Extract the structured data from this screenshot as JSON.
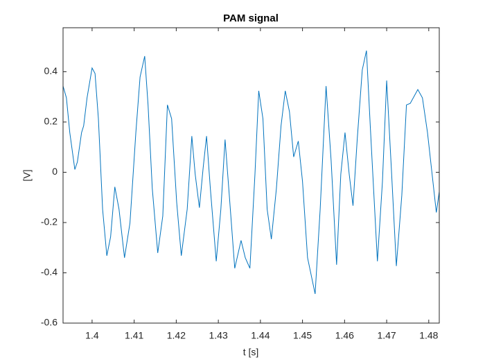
{
  "chart_data": {
    "type": "line",
    "title": "PAM signal",
    "x_label": "t [s]",
    "y_label": "[V]",
    "xlim": [
      1.3931,
      1.4825
    ],
    "ylim": [
      -0.6,
      0.575
    ],
    "xticks": [
      1.4,
      1.41,
      1.42,
      1.43,
      1.44,
      1.45,
      1.46,
      1.47,
      1.48
    ],
    "yticks": [
      -0.6,
      -0.4,
      -0.2,
      0,
      0.2,
      0.4
    ],
    "grid": false,
    "x": [
      1.3931,
      1.3939,
      1.3947,
      1.3959,
      1.3965,
      1.3975,
      1.398,
      1.3988,
      1.4,
      1.4007,
      1.4015,
      1.4025,
      1.4035,
      1.4044,
      1.4054,
      1.4064,
      1.4077,
      1.409,
      1.4104,
      1.4114,
      1.4125,
      1.4133,
      1.4143,
      1.4156,
      1.4168,
      1.4179,
      1.4189,
      1.4201,
      1.4212,
      1.4226,
      1.4237,
      1.4245,
      1.4255,
      1.4264,
      1.4272,
      1.4281,
      1.4295,
      1.4306,
      1.4316,
      1.4326,
      1.4339,
      1.4354,
      1.4364,
      1.4375,
      1.4387,
      1.4396,
      1.4406,
      1.4416,
      1.4426,
      1.4438,
      1.4449,
      1.4459,
      1.4469,
      1.4479,
      1.449,
      1.45,
      1.4512,
      1.453,
      1.4542,
      1.4556,
      1.4568,
      1.4581,
      1.4591,
      1.4601,
      1.4611,
      1.462,
      1.463,
      1.4642,
      1.4652,
      1.4661,
      1.4678,
      1.469,
      1.47,
      1.4711,
      1.4723,
      1.4736,
      1.4747,
      1.4756,
      1.4774,
      1.4785,
      1.4797,
      1.4808,
      1.4818,
      1.4825
    ],
    "series": [
      {
        "color": "#0072bd",
        "values": [
          0.343,
          0.296,
          0.158,
          0.011,
          0.041,
          0.158,
          0.185,
          0.296,
          0.415,
          0.393,
          0.213,
          -0.147,
          -0.332,
          -0.257,
          -0.058,
          -0.147,
          -0.34,
          -0.202,
          0.158,
          0.379,
          0.462,
          0.268,
          -0.064,
          -0.321,
          -0.174,
          0.268,
          0.213,
          -0.119,
          -0.332,
          -0.147,
          0.144,
          -0.008,
          -0.141,
          0.019,
          0.144,
          -0.064,
          -0.354,
          -0.147,
          0.13,
          -0.091,
          -0.382,
          -0.271,
          -0.34,
          -0.382,
          -0.008,
          0.324,
          0.213,
          -0.147,
          -0.266,
          -0.064,
          0.185,
          0.324,
          0.241,
          0.061,
          0.124,
          -0.036,
          -0.34,
          -0.484,
          -0.147,
          0.343,
          0.047,
          -0.368,
          -0.008,
          0.158,
          -0.008,
          -0.133,
          0.13,
          0.407,
          0.484,
          0.185,
          -0.354,
          -0.036,
          0.365,
          0.019,
          -0.373,
          -0.091,
          0.268,
          0.274,
          0.329,
          0.296,
          0.158,
          -0.008,
          -0.16,
          -0.077
        ]
      }
    ]
  }
}
